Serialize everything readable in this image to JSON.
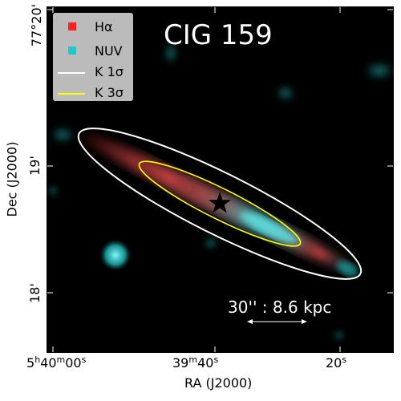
{
  "title": "CIG 159",
  "legend": [
    {
      "label": "Hα",
      "marker": "square",
      "color": "#ff2020"
    },
    {
      "label": "NUV",
      "marker": "square",
      "color": "#20c8c8"
    },
    {
      "label": "K 1σ",
      "marker": "line",
      "color": "#ffffff"
    },
    {
      "label": "K 3σ",
      "marker": "line",
      "color": "#ffff00"
    }
  ],
  "scale_bar": "30'' : 8.6 kpc",
  "axes": {
    "xlabel": "RA (J2000)",
    "ylabel": "Dec (J2000)",
    "xticks": [
      {
        "h": "5",
        "m": "40",
        "s": "00",
        "text": "5h40m00s"
      },
      {
        "m": "39",
        "s": "40",
        "text": "39m40s"
      },
      {
        "s": "20",
        "text": "20s"
      }
    ],
    "yticks": [
      "77°20'",
      "19'",
      "18'"
    ]
  },
  "colors": {
    "background": "#000000",
    "halpha": "#ff2020",
    "nuv": "#20c8c8",
    "contour_1sigma": "#ffffff",
    "contour_3sigma": "#ffff00"
  }
}
